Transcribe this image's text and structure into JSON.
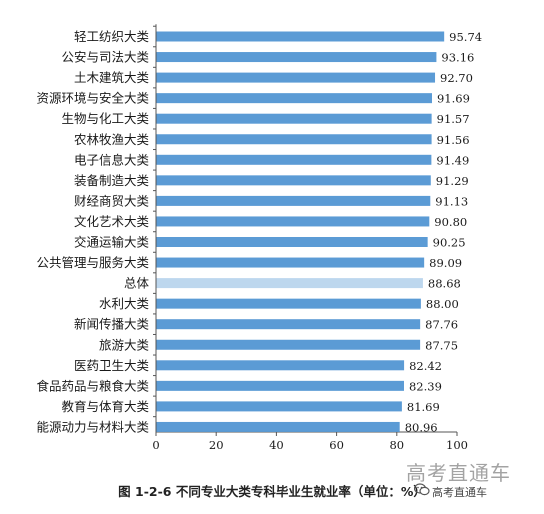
{
  "chart_data": {
    "type": "bar",
    "orientation": "horizontal",
    "categories": [
      "轻工纺织大类",
      "公安与司法大类",
      "土木建筑大类",
      "资源环境与安全大类",
      "生物与化工大类",
      "农林牧渔大类",
      "电子信息大类",
      "装备制造大类",
      "财经商贸大类",
      "文化艺术大类",
      "交通运输大类",
      "公共管理与服务大类",
      "总体",
      "水利大类",
      "新闻传播大类",
      "旅游大类",
      "医药卫生大类",
      "食品药品与粮食大类",
      "教育与体育大类",
      "能源动力与材料大类"
    ],
    "values": [
      95.74,
      93.16,
      92.7,
      91.69,
      91.57,
      91.56,
      91.49,
      91.29,
      91.13,
      90.8,
      90.25,
      89.09,
      88.68,
      88.0,
      87.76,
      87.75,
      82.42,
      82.39,
      81.69,
      80.96
    ],
    "value_labels": [
      "95.74",
      "93.16",
      "92.70",
      "91.69",
      "91.57",
      "91.56",
      "91.49",
      "91.29",
      "91.13",
      "90.80",
      "90.25",
      "89.09",
      "88.68",
      "88.00",
      "87.76",
      "87.75",
      "82.42",
      "82.39",
      "81.69",
      "80.96"
    ],
    "highlight_category": "总体",
    "xlim": [
      0,
      100
    ],
    "x_ticks": [
      0,
      20,
      40,
      60,
      80,
      100
    ],
    "x_tick_labels": [
      "0",
      "20",
      "40",
      "60",
      "80",
      "100"
    ],
    "grid": false,
    "title": "图 1-2-6  不同专业大类专科毕业生就业率（单位：%）",
    "xlabel": "",
    "ylabel": "",
    "colors": {
      "bar": "#5b9bd5",
      "bar_highlight": "#bdd7ee",
      "axis": "#555555",
      "text": "#1a1a1a"
    }
  },
  "watermark": {
    "main": "高考直通车",
    "sub": "高考直通车"
  }
}
